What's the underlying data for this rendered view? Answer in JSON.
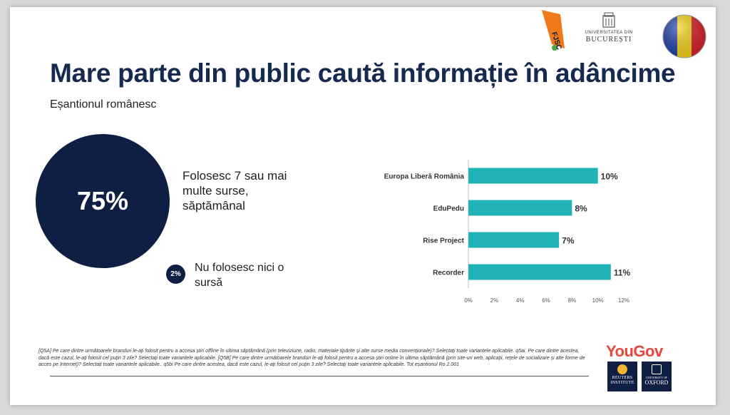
{
  "title": "Mare parte din public caută informație în adâncime",
  "subtitle": "Eșantionul românesc",
  "logos": {
    "fjsc": "FJSC",
    "unibuc_small": "UNIVERSITATEA DIN",
    "unibuc_big": "BUCUREȘTI",
    "yougov": "YouGov",
    "reuters": [
      "REUTERS",
      "INSTITUTE"
    ],
    "oxford_small": "UNIVERSITY OF",
    "oxford": "OXFORD"
  },
  "colors": {
    "navy": "#0f1f44",
    "title": "#16294f",
    "bar": "#1fb3b8",
    "flag_blue": "#1f3fa6",
    "flag_yellow": "#f5d21a",
    "flag_red": "#d8232a",
    "yougov": "#e8463a"
  },
  "highlights": {
    "main_value": "75%",
    "main_label": "Folosesc 7 sau mai multe surse, săptămânal",
    "secondary_value": "2%",
    "secondary_label": "Nu folosesc nici o sursă"
  },
  "chart_data": {
    "type": "bar",
    "orientation": "horizontal",
    "categories": [
      "Europa Liberă România",
      "EduPedu",
      "Rise Project",
      "Recorder"
    ],
    "values": [
      10,
      8,
      7,
      11
    ],
    "value_labels": [
      "10%",
      "8%",
      "7%",
      "11%"
    ],
    "xlim": [
      0,
      12
    ],
    "xticks": [
      0,
      2,
      4,
      6,
      8,
      10,
      12
    ],
    "xtick_labels": [
      "0%",
      "2%",
      "4%",
      "6%",
      "8%",
      "10%",
      "12%"
    ],
    "grid": false
  },
  "footnote": "[Q5A] Pe care dintre următoarele branduri le-ați folosit pentru a accesa știri offline în ultima săptămână (prin televiziune, radio, materiale tipărite și alte surse media convenționale)? Selectați toate variantele aplicabile. q5ai. Pe care dintre acestea, dacă este cazul, le-ați folosit cel puțin 3 zile? Selectați toate variantele aplicabile. [Q5B] Pe care dintre următoarele branduri le-ați folosit pentru a accesa știri online în ultima săptămână (prin site-uri web, aplicații, rețele de socializare și alte forme de acces pe Internet)? Selectați toate variantele aplicabile.. q5bi Pe care dintre acestea, dacă este cazul, le-ați folosit cel puțin 3 zile? Selectați toate variantele aplicabile. Tot eșantionul Ro 2.001"
}
